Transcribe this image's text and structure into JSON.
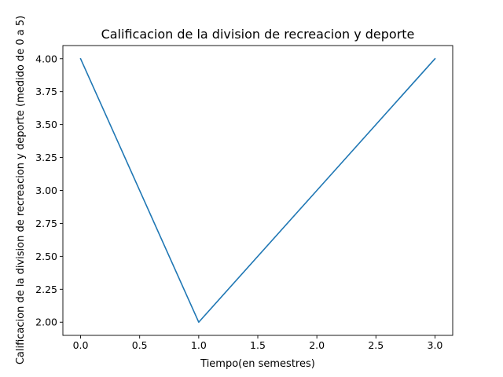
{
  "chart_data": {
    "type": "line",
    "title": "Calificacion de la division de recreacion y deporte",
    "xlabel": "Tiempo(en semestres)",
    "ylabel": "Calificacion de la division de recreacion y deporte (medido de 0 a 5)",
    "x": [
      0,
      1,
      2,
      3
    ],
    "series": [
      {
        "values": [
          4.0,
          2.0,
          3.0,
          4.0
        ],
        "color": "#1f77b4"
      }
    ],
    "xlim": [
      -0.15,
      3.15
    ],
    "ylim": [
      1.9,
      4.1
    ],
    "xticks": [
      "0.0",
      "0.5",
      "1.0",
      "1.5",
      "2.0",
      "2.5",
      "3.0"
    ],
    "yticks": [
      "2.00",
      "2.25",
      "2.50",
      "2.75",
      "3.00",
      "3.25",
      "3.50",
      "3.75",
      "4.00"
    ],
    "grid": false,
    "legend": "none"
  }
}
